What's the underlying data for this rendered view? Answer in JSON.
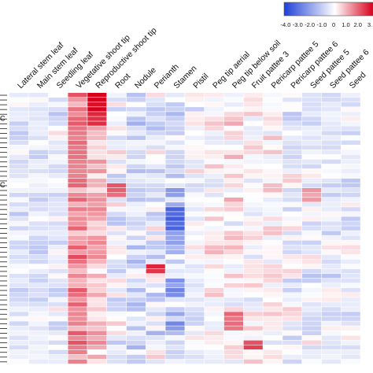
{
  "chart_data": {
    "type": "heatmap",
    "title": "",
    "xlabel": "",
    "ylabel": "",
    "columns": [
      "Lateral stem leaf",
      "Main stem leaf",
      "Seedling leaf",
      "Vegetative shoot tip",
      "Reproductive shoot tip",
      "Root",
      "Nodule",
      "Perianth",
      "Stamen",
      "Pistil",
      "Peg tip aerial",
      "Peg tip below soil",
      "Fruit pattee 3",
      "Pericarp pattee 5",
      "Pericarp pattee 6",
      "Seed pattee 5",
      "Seed pattee 6",
      "Seed"
    ],
    "row_count": 57,
    "color_scale": {
      "min": -4.0,
      "max": 3.0,
      "ticks": [
        "-4.0",
        "-3.0",
        "-2.0",
        "-1.0",
        "0",
        "1.0",
        "2.0",
        "3."
      ],
      "low_color": "#1f3fd6",
      "mid_color": "#ffffff",
      "high_color": "#d9001b"
    },
    "left_dendrogram_labels": [
      "C",
      "C"
    ],
    "column_profiles": [
      {
        "base": -0.6,
        "amp": 0.5
      },
      {
        "base": -0.5,
        "amp": 0.5
      },
      {
        "base": -0.4,
        "amp": 0.6
      },
      {
        "base": 1.4,
        "amp": 0.6
      },
      {
        "base": 0.8,
        "amp": 0.6
      },
      {
        "base": -0.3,
        "amp": 0.9
      },
      {
        "base": -0.7,
        "amp": 0.8
      },
      {
        "base": -0.5,
        "amp": 1.0
      },
      {
        "base": -1.2,
        "amp": 1.2
      },
      {
        "base": -0.2,
        "amp": 0.6
      },
      {
        "base": 0.1,
        "amp": 0.6
      },
      {
        "base": 0.2,
        "amp": 0.7
      },
      {
        "base": 0.0,
        "amp": 0.6
      },
      {
        "base": 0.1,
        "amp": 0.6
      },
      {
        "base": -0.3,
        "amp": 0.7
      },
      {
        "base": -0.4,
        "amp": 0.7
      },
      {
        "base": -0.4,
        "amp": 0.6
      },
      {
        "base": -0.4,
        "amp": 0.6
      }
    ],
    "hotspots": [
      {
        "col": 4,
        "row_from": 0,
        "row_to": 3,
        "value": 3.0
      },
      {
        "col": 4,
        "row_from": 4,
        "row_to": 6,
        "value": 2.4
      },
      {
        "col": 3,
        "row_from": 8,
        "row_to": 18,
        "value": 1.6
      },
      {
        "col": 8,
        "row_from": 24,
        "row_to": 28,
        "value": -3.2
      },
      {
        "col": 7,
        "row_from": 36,
        "row_to": 37,
        "value": 2.6
      },
      {
        "col": 11,
        "row_from": 46,
        "row_to": 49,
        "value": 1.8
      },
      {
        "col": 12,
        "row_from": 52,
        "row_to": 53,
        "value": 2.2
      },
      {
        "col": 5,
        "row_from": 19,
        "row_to": 21,
        "value": 1.8
      },
      {
        "col": 15,
        "row_from": 20,
        "row_to": 22,
        "value": 1.2
      }
    ]
  }
}
